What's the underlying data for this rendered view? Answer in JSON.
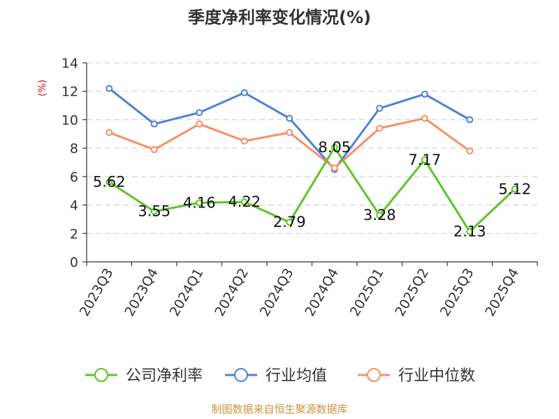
{
  "chart_data": {
    "type": "line",
    "title": "季度净利率变化情况(%)",
    "ylabel": "(%)",
    "categories": [
      "2023Q3",
      "2023Q4",
      "2024Q1",
      "2024Q2",
      "2024Q3",
      "2024Q4",
      "2025Q1",
      "2025Q2",
      "2025Q3",
      "2025Q4"
    ],
    "ylim": [
      0,
      14
    ],
    "yticks": [
      0,
      2,
      4,
      6,
      8,
      10,
      12,
      14
    ],
    "grid": true,
    "legend_position": "bottom",
    "series": [
      {
        "name": "公司净利率",
        "color": "#5dc528",
        "values": [
          5.62,
          3.55,
          4.16,
          4.22,
          2.79,
          8.05,
          3.28,
          7.17,
          2.13,
          5.12
        ],
        "labels": [
          "5.62",
          "3.55",
          "4.16",
          "4.22",
          "2.79",
          "8.05",
          "3.28",
          "7.17",
          "2.13",
          "5.12"
        ]
      },
      {
        "name": "行业均值",
        "color": "#4f7fd9",
        "values": [
          12.2,
          9.7,
          10.5,
          11.9,
          10.1,
          6.5,
          10.8,
          11.8,
          10.0,
          null
        ]
      },
      {
        "name": "行业中位数",
        "color": "#f89060",
        "values": [
          9.1,
          7.9,
          9.7,
          8.5,
          9.1,
          6.6,
          9.4,
          10.1,
          7.8,
          null
        ]
      }
    ]
  },
  "source": "制图数据来自恒生聚源数据库",
  "colors": {
    "title": "#333333",
    "ylabel": "#e01010",
    "source": "#c8963c",
    "grid": "#cccccc",
    "axis": "#333333"
  }
}
